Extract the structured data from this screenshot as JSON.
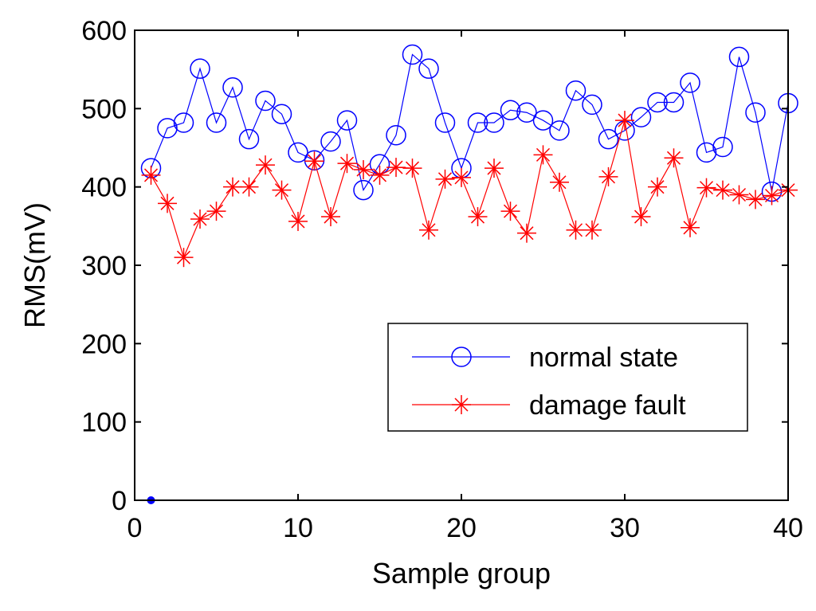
{
  "chart_data": {
    "type": "line",
    "xlabel": "Sample group",
    "ylabel": "RMS(mV)",
    "xlim": [
      0,
      40
    ],
    "ylim": [
      0,
      600
    ],
    "xticks": [
      0,
      10,
      20,
      30,
      40
    ],
    "yticks": [
      0,
      100,
      200,
      300,
      400,
      500,
      600
    ],
    "grid": false,
    "legend_position": "lower-right",
    "x": [
      1,
      2,
      3,
      4,
      5,
      6,
      7,
      8,
      9,
      10,
      11,
      12,
      13,
      14,
      15,
      16,
      17,
      18,
      19,
      20,
      21,
      22,
      23,
      24,
      25,
      26,
      27,
      28,
      29,
      30,
      31,
      32,
      33,
      34,
      35,
      36,
      37,
      38,
      39,
      40
    ],
    "series": [
      {
        "name": "normal state",
        "color": "#0000ff",
        "marker": "circle",
        "values": [
          424,
          475,
          482,
          551,
          482,
          527,
          461,
          510,
          493,
          444,
          434,
          458,
          485,
          396,
          429,
          466,
          569,
          551,
          482,
          424,
          482,
          482,
          498,
          495,
          485,
          472,
          523,
          505,
          461,
          472,
          489,
          508,
          508,
          533,
          444,
          451,
          566,
          495,
          394,
          507
        ]
      },
      {
        "name": "damage fault",
        "color": "#ff0000",
        "marker": "star",
        "values": [
          415,
          379,
          310,
          359,
          369,
          400,
          400,
          428,
          396,
          356,
          433,
          362,
          430,
          422,
          415,
          425,
          424,
          345,
          410,
          412,
          362,
          424,
          369,
          341,
          441,
          406,
          345,
          345,
          413,
          485,
          362,
          400,
          437,
          348,
          399,
          396,
          390,
          384,
          389,
          396
        ]
      }
    ],
    "extra_points": [
      {
        "x": 1,
        "y": 0,
        "color": "#0000ff",
        "marker": "dot"
      }
    ]
  }
}
